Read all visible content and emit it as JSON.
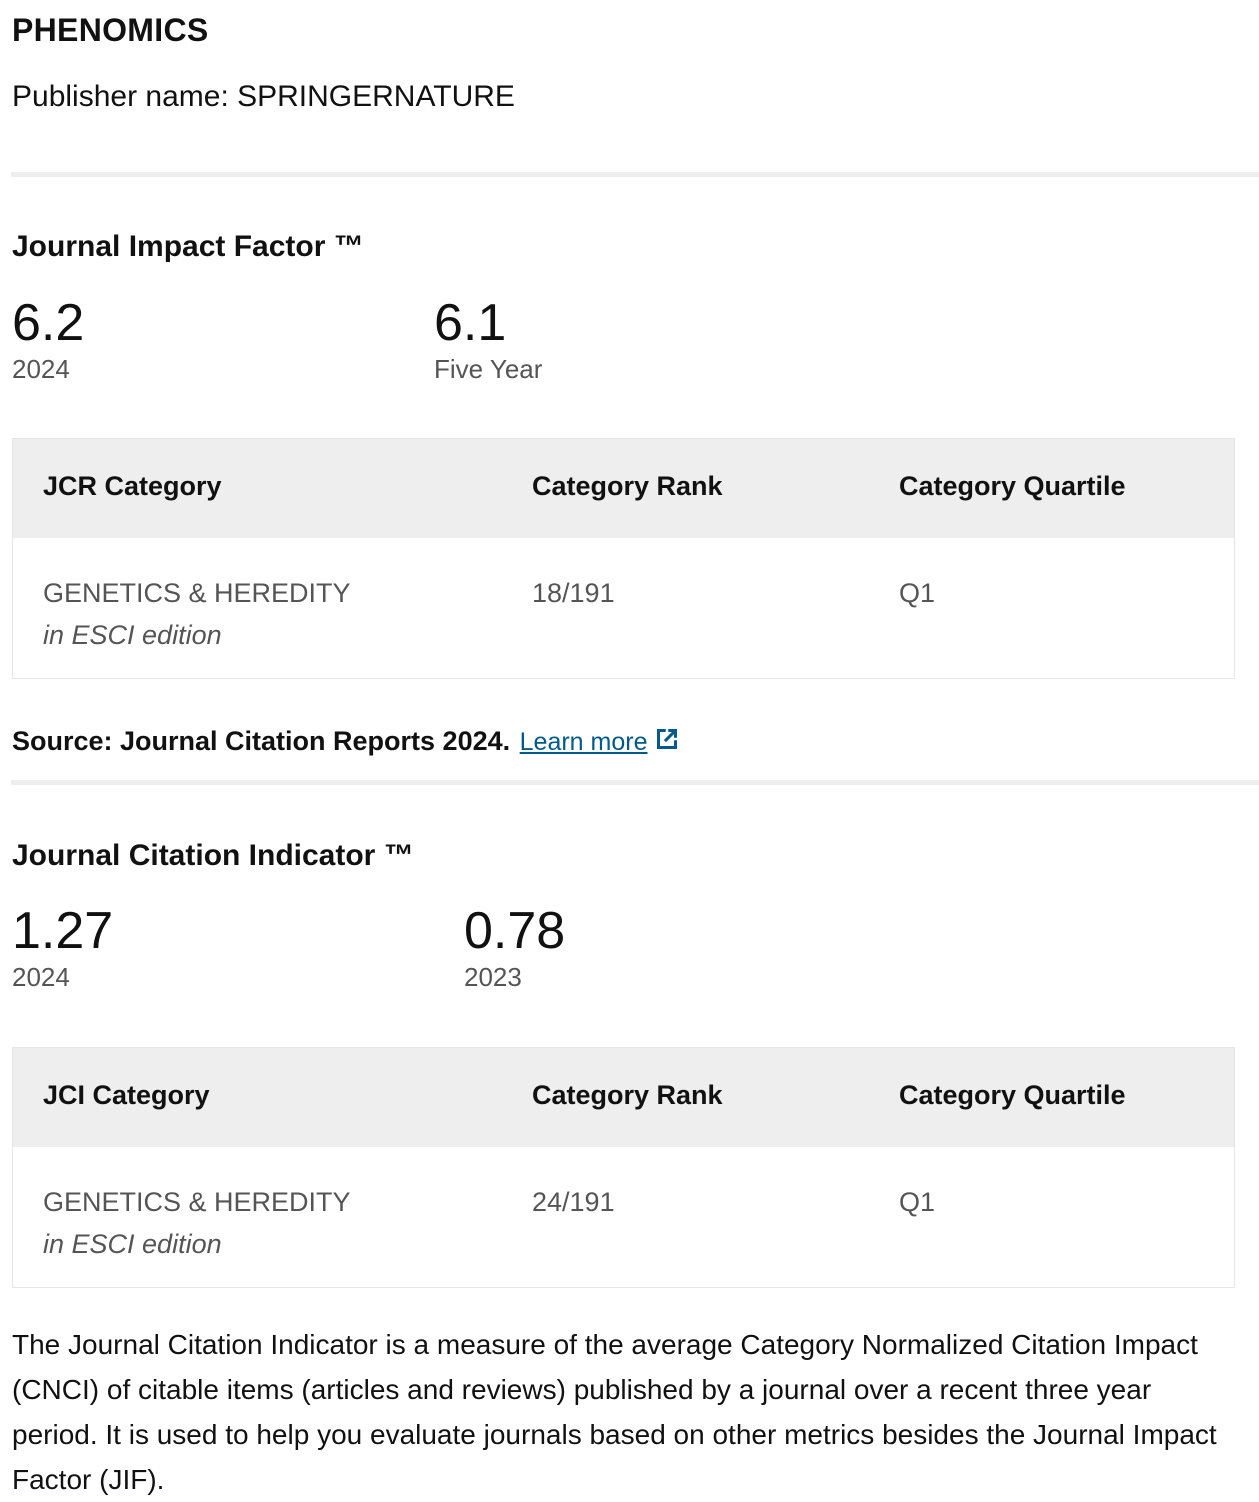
{
  "journal": {
    "title": "PHENOMICS",
    "publisher_label": "Publisher name: SPRINGERNATURE"
  },
  "jif": {
    "title": "Journal Impact Factor ™",
    "metrics": [
      {
        "value": "6.2",
        "label": "2024"
      },
      {
        "value": "6.1",
        "label": "Five Year"
      }
    ],
    "table": {
      "headers": [
        "JCR Category",
        "Category Rank",
        "Category Quartile"
      ],
      "rows": [
        {
          "category": "GENETICS & HEREDITY",
          "edition": "in ESCI edition",
          "rank": "18/191",
          "quartile": "Q1"
        }
      ]
    },
    "source_text": "Source: Journal Citation Reports  2024.",
    "learn_more": "Learn more",
    "learn_more_icon": "external-link-icon"
  },
  "jci": {
    "title": "Journal Citation Indicator ™",
    "metrics": [
      {
        "value": "1.27",
        "label": "2024"
      },
      {
        "value": "0.78",
        "label": "2023"
      }
    ],
    "table": {
      "headers": [
        "JCI Category",
        "Category Rank",
        "Category Quartile"
      ],
      "rows": [
        {
          "category": "GENETICS & HEREDITY",
          "edition": "in ESCI edition",
          "rank": "24/191",
          "quartile": "Q1"
        }
      ]
    },
    "description": "The Journal Citation Indicator is a measure of the average Category Normalized Citation Impact (CNCI) of citable items (articles and reviews) published by a journal over a recent three year period. It is used to help you evaluate journals based on other metrics besides the Journal Impact Factor (JIF)."
  },
  "colors": {
    "link": "#005a8c",
    "table_header_bg": "#eeeeee",
    "muted_text": "#555555"
  }
}
